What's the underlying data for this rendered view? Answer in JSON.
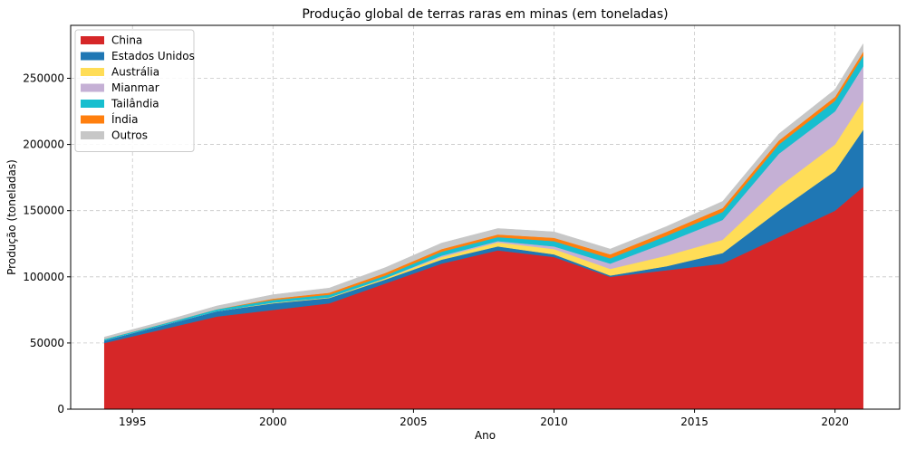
{
  "chart_data": {
    "type": "area",
    "title": "Produção global de terras raras em minas (em toneladas)",
    "xlabel": "Ano",
    "ylabel": "Produção (toneladas)",
    "xlim": [
      1992.8,
      2022.3
    ],
    "ylim": [
      0,
      290000
    ],
    "x_ticks": [
      1995,
      2000,
      2005,
      2010,
      2015,
      2020
    ],
    "y_ticks": [
      0,
      50000,
      100000,
      150000,
      200000,
      250000
    ],
    "grid": true,
    "legend_position": "top-left",
    "x": [
      1994,
      1996,
      1998,
      2000,
      2002,
      2004,
      2006,
      2008,
      2010,
      2012,
      2014,
      2016,
      2018,
      2020,
      2021
    ],
    "series": [
      {
        "name": "China",
        "color": "#d62728",
        "values": [
          50000,
          60000,
          70000,
          75000,
          80000,
          95000,
          110000,
          120000,
          115000,
          100000,
          105000,
          110000,
          130000,
          150000,
          168000
        ]
      },
      {
        "name": "Estados Unidos",
        "color": "#1f77b4",
        "values": [
          2000,
          3000,
          4000,
          5000,
          4000,
          3000,
          3000,
          3000,
          2000,
          1000,
          3000,
          8000,
          20000,
          30000,
          43000
        ]
      },
      {
        "name": "Austrália",
        "color": "#ffdd57",
        "values": [
          0,
          0,
          0,
          500,
          500,
          1000,
          2000,
          3000,
          4000,
          5000,
          8000,
          10000,
          18000,
          20000,
          22000
        ]
      },
      {
        "name": "Mianmar",
        "color": "#c5b0d5",
        "values": [
          0,
          0,
          0,
          0,
          0,
          0,
          1000,
          1000,
          2000,
          4000,
          10000,
          15000,
          25000,
          25000,
          26000
        ]
      },
      {
        "name": "Tailândia",
        "color": "#17becf",
        "values": [
          1000,
          1000,
          1500,
          2000,
          2000,
          2000,
          3000,
          3000,
          4000,
          4000,
          5000,
          6000,
          7000,
          8000,
          8000
        ]
      },
      {
        "name": "Índia",
        "color": "#ff7f0e",
        "values": [
          0,
          0,
          0,
          1000,
          1500,
          2000,
          2000,
          2000,
          2500,
          3000,
          3000,
          3000,
          3000,
          3000,
          3000
        ]
      },
      {
        "name": "Outros",
        "color": "#c7c7c7",
        "values": [
          1500,
          1800,
          2500,
          3000,
          3500,
          4000,
          4500,
          4500,
          4500,
          4000,
          4000,
          5000,
          5000,
          5500,
          6000
        ]
      }
    ]
  }
}
